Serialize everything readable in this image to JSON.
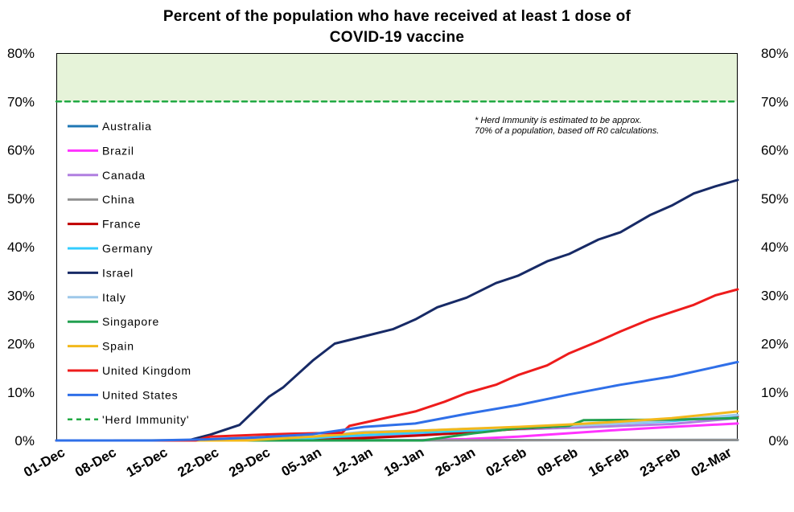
{
  "chart_data": {
    "type": "line",
    "title_line1": "Percent of the population who have received at least 1 dose of",
    "title_line2": "COVID-19 vaccine",
    "note_line1": "* Herd Immunity is estimated to be approx.",
    "note_line2": "70% of a population, based off R0 calculations.",
    "xlabel": "",
    "ylabel": "",
    "ylim": [
      0,
      80
    ],
    "yticks": [
      "0%",
      "10%",
      "20%",
      "30%",
      "40%",
      "50%",
      "60%",
      "70%",
      "80%"
    ],
    "x_start": "2020-12-01",
    "x_end": "2021-03-04",
    "xticks": [
      "01-Dec",
      "08-Dec",
      "15-Dec",
      "22-Dec",
      "29-Dec",
      "05-Jan",
      "12-Jan",
      "19-Jan",
      "26-Jan",
      "02-Feb",
      "09-Feb",
      "16-Feb",
      "23-Feb",
      "02-Mar"
    ],
    "grid": false,
    "legend_position": "left",
    "herd_immunity_level": 70,
    "series": [
      {
        "name": "Australia",
        "color": "#1f77b4",
        "points": [
          [
            "2020-12-01",
            0
          ],
          [
            "2021-03-04",
            0.1
          ]
        ]
      },
      {
        "name": "Brazil",
        "color": "#ff33ff",
        "points": [
          [
            "2020-12-01",
            0
          ],
          [
            "2021-01-17",
            0
          ],
          [
            "2021-01-26",
            0.3
          ],
          [
            "2021-02-02",
            0.8
          ],
          [
            "2021-02-09",
            1.5
          ],
          [
            "2021-02-16",
            2.2
          ],
          [
            "2021-02-23",
            2.8
          ],
          [
            "2021-03-04",
            3.5
          ]
        ]
      },
      {
        "name": "Canada",
        "color": "#b07fe0",
        "points": [
          [
            "2020-12-01",
            0
          ],
          [
            "2020-12-15",
            0
          ],
          [
            "2020-12-29",
            0.3
          ],
          [
            "2021-01-12",
            0.9
          ],
          [
            "2021-01-26",
            2.0
          ],
          [
            "2021-02-09",
            2.6
          ],
          [
            "2021-02-23",
            3.4
          ],
          [
            "2021-03-04",
            4.6
          ]
        ]
      },
      {
        "name": "China",
        "color": "#909090",
        "points": [
          [
            "2020-12-01",
            0
          ],
          [
            "2021-03-04",
            0.1
          ]
        ]
      },
      {
        "name": "France",
        "color": "#c00000",
        "points": [
          [
            "2020-12-01",
            0
          ],
          [
            "2020-12-27",
            0
          ],
          [
            "2021-01-05",
            0.1
          ],
          [
            "2021-01-12",
            0.5
          ],
          [
            "2021-01-19",
            1.0
          ],
          [
            "2021-01-26",
            1.6
          ],
          [
            "2021-02-02",
            2.4
          ],
          [
            "2021-02-09",
            3.0
          ],
          [
            "2021-02-16",
            3.6
          ],
          [
            "2021-02-23",
            4.2
          ],
          [
            "2021-03-04",
            5.0
          ]
        ]
      },
      {
        "name": "Germany",
        "color": "#33ccff",
        "points": [
          [
            "2020-12-01",
            0
          ],
          [
            "2020-12-27",
            0
          ],
          [
            "2021-01-05",
            0.5
          ],
          [
            "2021-01-12",
            1.1
          ],
          [
            "2021-01-19",
            1.6
          ],
          [
            "2021-01-26",
            2.0
          ],
          [
            "2021-02-02",
            2.5
          ],
          [
            "2021-02-09",
            3.0
          ],
          [
            "2021-02-16",
            3.5
          ],
          [
            "2021-02-23",
            4.0
          ],
          [
            "2021-03-04",
            5.2
          ]
        ]
      },
      {
        "name": "Israel",
        "color": "#172a66",
        "points": [
          [
            "2020-12-01",
            0
          ],
          [
            "2020-12-19",
            0
          ],
          [
            "2020-12-22",
            1.2
          ],
          [
            "2020-12-26",
            3.2
          ],
          [
            "2020-12-30",
            9
          ],
          [
            "2021-01-01",
            11
          ],
          [
            "2021-01-05",
            16.5
          ],
          [
            "2021-01-08",
            20
          ],
          [
            "2021-01-12",
            21.5
          ],
          [
            "2021-01-16",
            23
          ],
          [
            "2021-01-19",
            25
          ],
          [
            "2021-01-22",
            27.5
          ],
          [
            "2021-01-26",
            29.5
          ],
          [
            "2021-01-30",
            32.5
          ],
          [
            "2021-02-02",
            34
          ],
          [
            "2021-02-06",
            37
          ],
          [
            "2021-02-09",
            38.5
          ],
          [
            "2021-02-13",
            41.5
          ],
          [
            "2021-02-16",
            43
          ],
          [
            "2021-02-20",
            46.5
          ],
          [
            "2021-02-23",
            48.5
          ],
          [
            "2021-02-26",
            51
          ],
          [
            "2021-03-01",
            52.5
          ],
          [
            "2021-03-04",
            53.8
          ]
        ]
      },
      {
        "name": "Italy",
        "color": "#9ec8ea",
        "points": [
          [
            "2020-12-01",
            0
          ],
          [
            "2020-12-27",
            0
          ],
          [
            "2021-01-05",
            0.8
          ],
          [
            "2021-01-12",
            1.8
          ],
          [
            "2021-01-19",
            2.0
          ],
          [
            "2021-01-26",
            2.4
          ],
          [
            "2021-02-02",
            2.6
          ],
          [
            "2021-02-09",
            3.0
          ],
          [
            "2021-02-16",
            3.5
          ],
          [
            "2021-02-23",
            4.2
          ],
          [
            "2021-03-04",
            5.3
          ]
        ]
      },
      {
        "name": "Singapore",
        "color": "#22a050",
        "points": [
          [
            "2020-12-01",
            0
          ],
          [
            "2021-01-20",
            0
          ],
          [
            "2021-01-27",
            1.5
          ],
          [
            "2021-02-02",
            2.5
          ],
          [
            "2021-02-09",
            3.0
          ],
          [
            "2021-02-11",
            4.2
          ],
          [
            "2021-02-23",
            4.3
          ],
          [
            "2021-03-04",
            4.6
          ]
        ]
      },
      {
        "name": "Spain",
        "color": "#f2b81b",
        "points": [
          [
            "2020-12-01",
            0
          ],
          [
            "2020-12-27",
            0
          ],
          [
            "2021-01-05",
            0.8
          ],
          [
            "2021-01-12",
            1.6
          ],
          [
            "2021-01-19",
            2.0
          ],
          [
            "2021-01-26",
            2.4
          ],
          [
            "2021-02-02",
            2.8
          ],
          [
            "2021-02-09",
            3.3
          ],
          [
            "2021-02-16",
            3.9
          ],
          [
            "2021-02-23",
            4.6
          ],
          [
            "2021-03-04",
            6.0
          ]
        ]
      },
      {
        "name": "United Kingdom",
        "color": "#ee1c1c",
        "points": [
          [
            "2020-12-01",
            0
          ],
          [
            "2020-12-20",
            0
          ],
          [
            "2020-12-22",
            0.8
          ],
          [
            "2020-12-29",
            1.2
          ],
          [
            "2021-01-02",
            1.4
          ],
          [
            "2021-01-09",
            1.6
          ],
          [
            "2021-01-10",
            3.0
          ],
          [
            "2021-01-16",
            5.0
          ],
          [
            "2021-01-19",
            6.0
          ],
          [
            "2021-01-23",
            8.0
          ],
          [
            "2021-01-26",
            9.8
          ],
          [
            "2021-01-30",
            11.5
          ],
          [
            "2021-02-02",
            13.5
          ],
          [
            "2021-02-06",
            15.5
          ],
          [
            "2021-02-09",
            18.0
          ],
          [
            "2021-02-13",
            20.5
          ],
          [
            "2021-02-16",
            22.5
          ],
          [
            "2021-02-20",
            25.0
          ],
          [
            "2021-02-23",
            26.5
          ],
          [
            "2021-02-26",
            28.0
          ],
          [
            "2021-03-01",
            30.0
          ],
          [
            "2021-03-04",
            31.2
          ]
        ]
      },
      {
        "name": "United States",
        "color": "#2f6fe8",
        "points": [
          [
            "2020-12-01",
            0
          ],
          [
            "2020-12-14",
            0
          ],
          [
            "2020-12-21",
            0.2
          ],
          [
            "2020-12-28",
            0.6
          ],
          [
            "2021-01-05",
            1.3
          ],
          [
            "2021-01-12",
            2.8
          ],
          [
            "2021-01-19",
            3.5
          ],
          [
            "2021-01-26",
            5.5
          ],
          [
            "2021-02-02",
            7.3
          ],
          [
            "2021-02-09",
            9.5
          ],
          [
            "2021-02-16",
            11.5
          ],
          [
            "2021-02-23",
            13.2
          ],
          [
            "2021-03-04",
            16.2
          ]
        ]
      },
      {
        "name": "'Herd Immunity'",
        "color": "#22aa44",
        "dashed": true,
        "points": [
          [
            "2020-12-01",
            70
          ],
          [
            "2021-03-04",
            70
          ]
        ]
      }
    ]
  }
}
